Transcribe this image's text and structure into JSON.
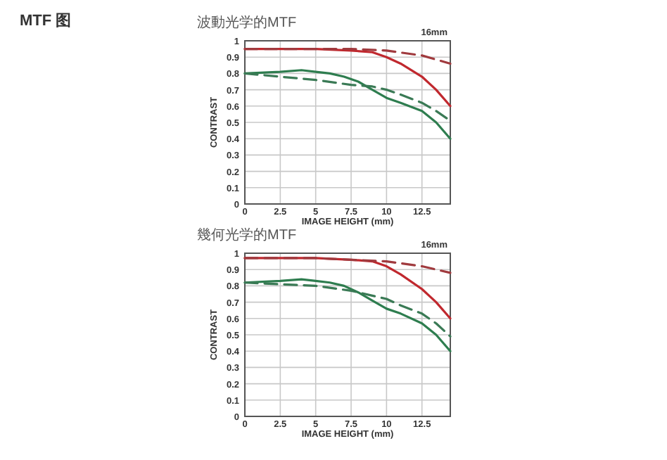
{
  "chart_data": [
    {
      "type": "other",
      "title": "MTF 图"
    },
    {
      "type": "line",
      "title": "波動光学的MTF",
      "xlabel": "IMAGE HEIGHT (mm)",
      "ylabel": "CONTRAST",
      "annotations": [
        "16mm"
      ],
      "xlim": [
        0,
        14.5
      ],
      "ylim": [
        0,
        1
      ],
      "xticks": [
        0,
        2.5,
        5,
        7.5,
        10,
        12.5
      ],
      "yticks": [
        0,
        0.1,
        0.2,
        0.3,
        0.4,
        0.5,
        0.6,
        0.7,
        0.8,
        0.9,
        1
      ],
      "grid": true,
      "series": [
        {
          "color": "#c0282e",
          "line_style": "solid",
          "x": [
            0,
            2.5,
            5,
            7.5,
            9,
            10,
            11,
            12.5,
            13.5,
            14.5
          ],
          "values": [
            0.95,
            0.95,
            0.95,
            0.94,
            0.93,
            0.9,
            0.86,
            0.78,
            0.7,
            0.6
          ]
        },
        {
          "color": "#a03a3e",
          "line_style": "dashed",
          "x": [
            0,
            5,
            7.5,
            10,
            12.5,
            14.5
          ],
          "values": [
            0.95,
            0.95,
            0.95,
            0.94,
            0.91,
            0.86
          ]
        },
        {
          "color": "#2e7d4f",
          "line_style": "solid",
          "x": [
            0,
            2.5,
            4,
            5,
            6,
            7,
            8,
            9,
            10,
            11,
            12.5,
            13.5,
            14.5
          ],
          "values": [
            0.8,
            0.81,
            0.82,
            0.81,
            0.8,
            0.78,
            0.75,
            0.7,
            0.65,
            0.62,
            0.57,
            0.5,
            0.4
          ]
        },
        {
          "color": "#3a7a55",
          "line_style": "dashed",
          "x": [
            0,
            2.5,
            5,
            7.5,
            9,
            10,
            11,
            12.5,
            13.5,
            14.5
          ],
          "values": [
            0.8,
            0.78,
            0.76,
            0.73,
            0.72,
            0.7,
            0.67,
            0.62,
            0.57,
            0.51
          ]
        }
      ]
    },
    {
      "type": "line",
      "title": "幾何光学的MTF",
      "xlabel": "IMAGE HEIGHT (mm)",
      "ylabel": "CONTRAST",
      "annotations": [
        "16mm"
      ],
      "xlim": [
        0,
        14.5
      ],
      "ylim": [
        0,
        1
      ],
      "xticks": [
        0,
        2.5,
        5,
        7.5,
        10,
        12.5
      ],
      "yticks": [
        0,
        0.1,
        0.2,
        0.3,
        0.4,
        0.5,
        0.6,
        0.7,
        0.8,
        0.9,
        1
      ],
      "grid": true,
      "series": [
        {
          "color": "#c0282e",
          "line_style": "solid",
          "x": [
            0,
            5,
            7.5,
            9,
            10,
            11,
            12.5,
            13.5,
            14.5
          ],
          "values": [
            0.97,
            0.97,
            0.96,
            0.95,
            0.92,
            0.87,
            0.78,
            0.7,
            0.6
          ]
        },
        {
          "color": "#a03a3e",
          "line_style": "dashed",
          "x": [
            0,
            5,
            7.5,
            10,
            12.5,
            14.5
          ],
          "values": [
            0.97,
            0.97,
            0.96,
            0.95,
            0.92,
            0.88
          ]
        },
        {
          "color": "#2e7d4f",
          "line_style": "solid",
          "x": [
            0,
            2.5,
            4,
            5,
            6,
            7,
            8,
            9,
            10,
            11,
            12.5,
            13.5,
            14.5
          ],
          "values": [
            0.82,
            0.83,
            0.84,
            0.83,
            0.82,
            0.8,
            0.76,
            0.71,
            0.66,
            0.63,
            0.57,
            0.5,
            0.4
          ]
        },
        {
          "color": "#3a7a55",
          "line_style": "dashed",
          "x": [
            0,
            2.5,
            5,
            7.5,
            9,
            10,
            11,
            12.5,
            13.5,
            14.5
          ],
          "values": [
            0.82,
            0.81,
            0.8,
            0.77,
            0.74,
            0.72,
            0.68,
            0.63,
            0.57,
            0.49
          ]
        }
      ]
    }
  ]
}
